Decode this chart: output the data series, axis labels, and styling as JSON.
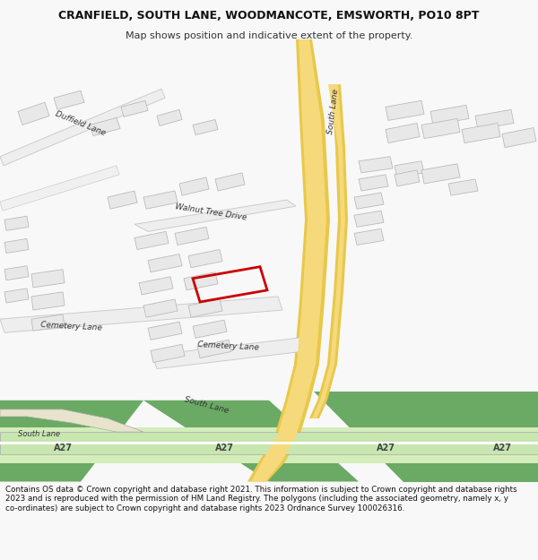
{
  "title": "CRANFIELD, SOUTH LANE, WOODMANCOTE, EMSWORTH, PO10 8PT",
  "subtitle": "Map shows position and indicative extent of the property.",
  "footer": "Contains OS data © Crown copyright and database right 2021. This information is subject to Crown copyright and database rights 2023 and is reproduced with the permission of HM Land Registry. The polygons (including the associated geometry, namely x, y co-ordinates) are subject to Crown copyright and database rights 2023 Ordnance Survey 100026316.",
  "bg_color": "#f8f8f8",
  "map_bg": "#ffffff",
  "road_yellow": "#f5d97a",
  "road_yellow_border": "#e8c84a",
  "road_green": "#6aaa64",
  "road_green_light": "#8fc48a",
  "road_white": "#ffffff",
  "road_border": "#cccccc",
  "building_fill": "#e8e8e8",
  "building_border": "#bbbbbb",
  "plot_color": "#cc0000",
  "text_color": "#333333",
  "map_area": [
    0,
    0,
    600,
    490
  ]
}
